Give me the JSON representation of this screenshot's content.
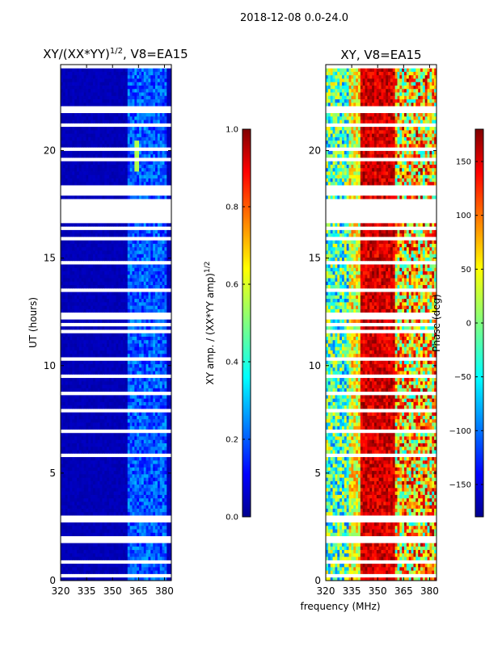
{
  "figure_title": "2018-12-08 0.0-24.0",
  "shared_xlabel": "frequency (MHz)",
  "chart_data": [
    {
      "type": "heatmap",
      "title": "XY/(XX*YY)",
      "title_exponent": "1/2",
      "title_suffix": ", V8=EA15",
      "xlabel": "",
      "ylabel": "UT (hours)",
      "xlim": [
        320,
        384
      ],
      "ylim": [
        0,
        24
      ],
      "xticks": [
        320,
        335,
        350,
        365,
        380
      ],
      "yticks": [
        0,
        5,
        10,
        15,
        20
      ],
      "colorbar": {
        "label": "XY amp. / (XX*YY amp)",
        "label_exponent": "1/2",
        "range": [
          0.0,
          1.0
        ],
        "ticks": [
          "0.0",
          "0.2",
          "0.4",
          "0.6",
          "0.8",
          "1.0"
        ],
        "colormap": "jet"
      },
      "notes": "Mostly low amplitude (~0.05) across band; elevated ~0.2-0.4 between 360-382 MHz; data gap 16.7-17.6 UT."
    },
    {
      "type": "heatmap",
      "title": "XY, V8=EA15",
      "xlabel": "frequency (MHz)",
      "ylabel": "",
      "xlim": [
        320,
        384
      ],
      "ylim": [
        0,
        24
      ],
      "xticks": [
        320,
        335,
        350,
        365,
        380
      ],
      "yticks": [
        0,
        5,
        10,
        15,
        20
      ],
      "colorbar": {
        "label": "Phase (deg)",
        "range": [
          -180,
          180
        ],
        "ticks": [
          "-150",
          "-100",
          "-50",
          "0",
          "50",
          "100",
          "150"
        ],
        "colormap": "jet"
      },
      "notes": "Phase noisy (blue/cyan) near 320-335 MHz, ~150 deg (red) across 340-360 MHz, mixed 360-384 MHz; data gap 16.7-17.6 UT."
    }
  ],
  "colors": {
    "low": "#00008f",
    "high": "#800000"
  }
}
